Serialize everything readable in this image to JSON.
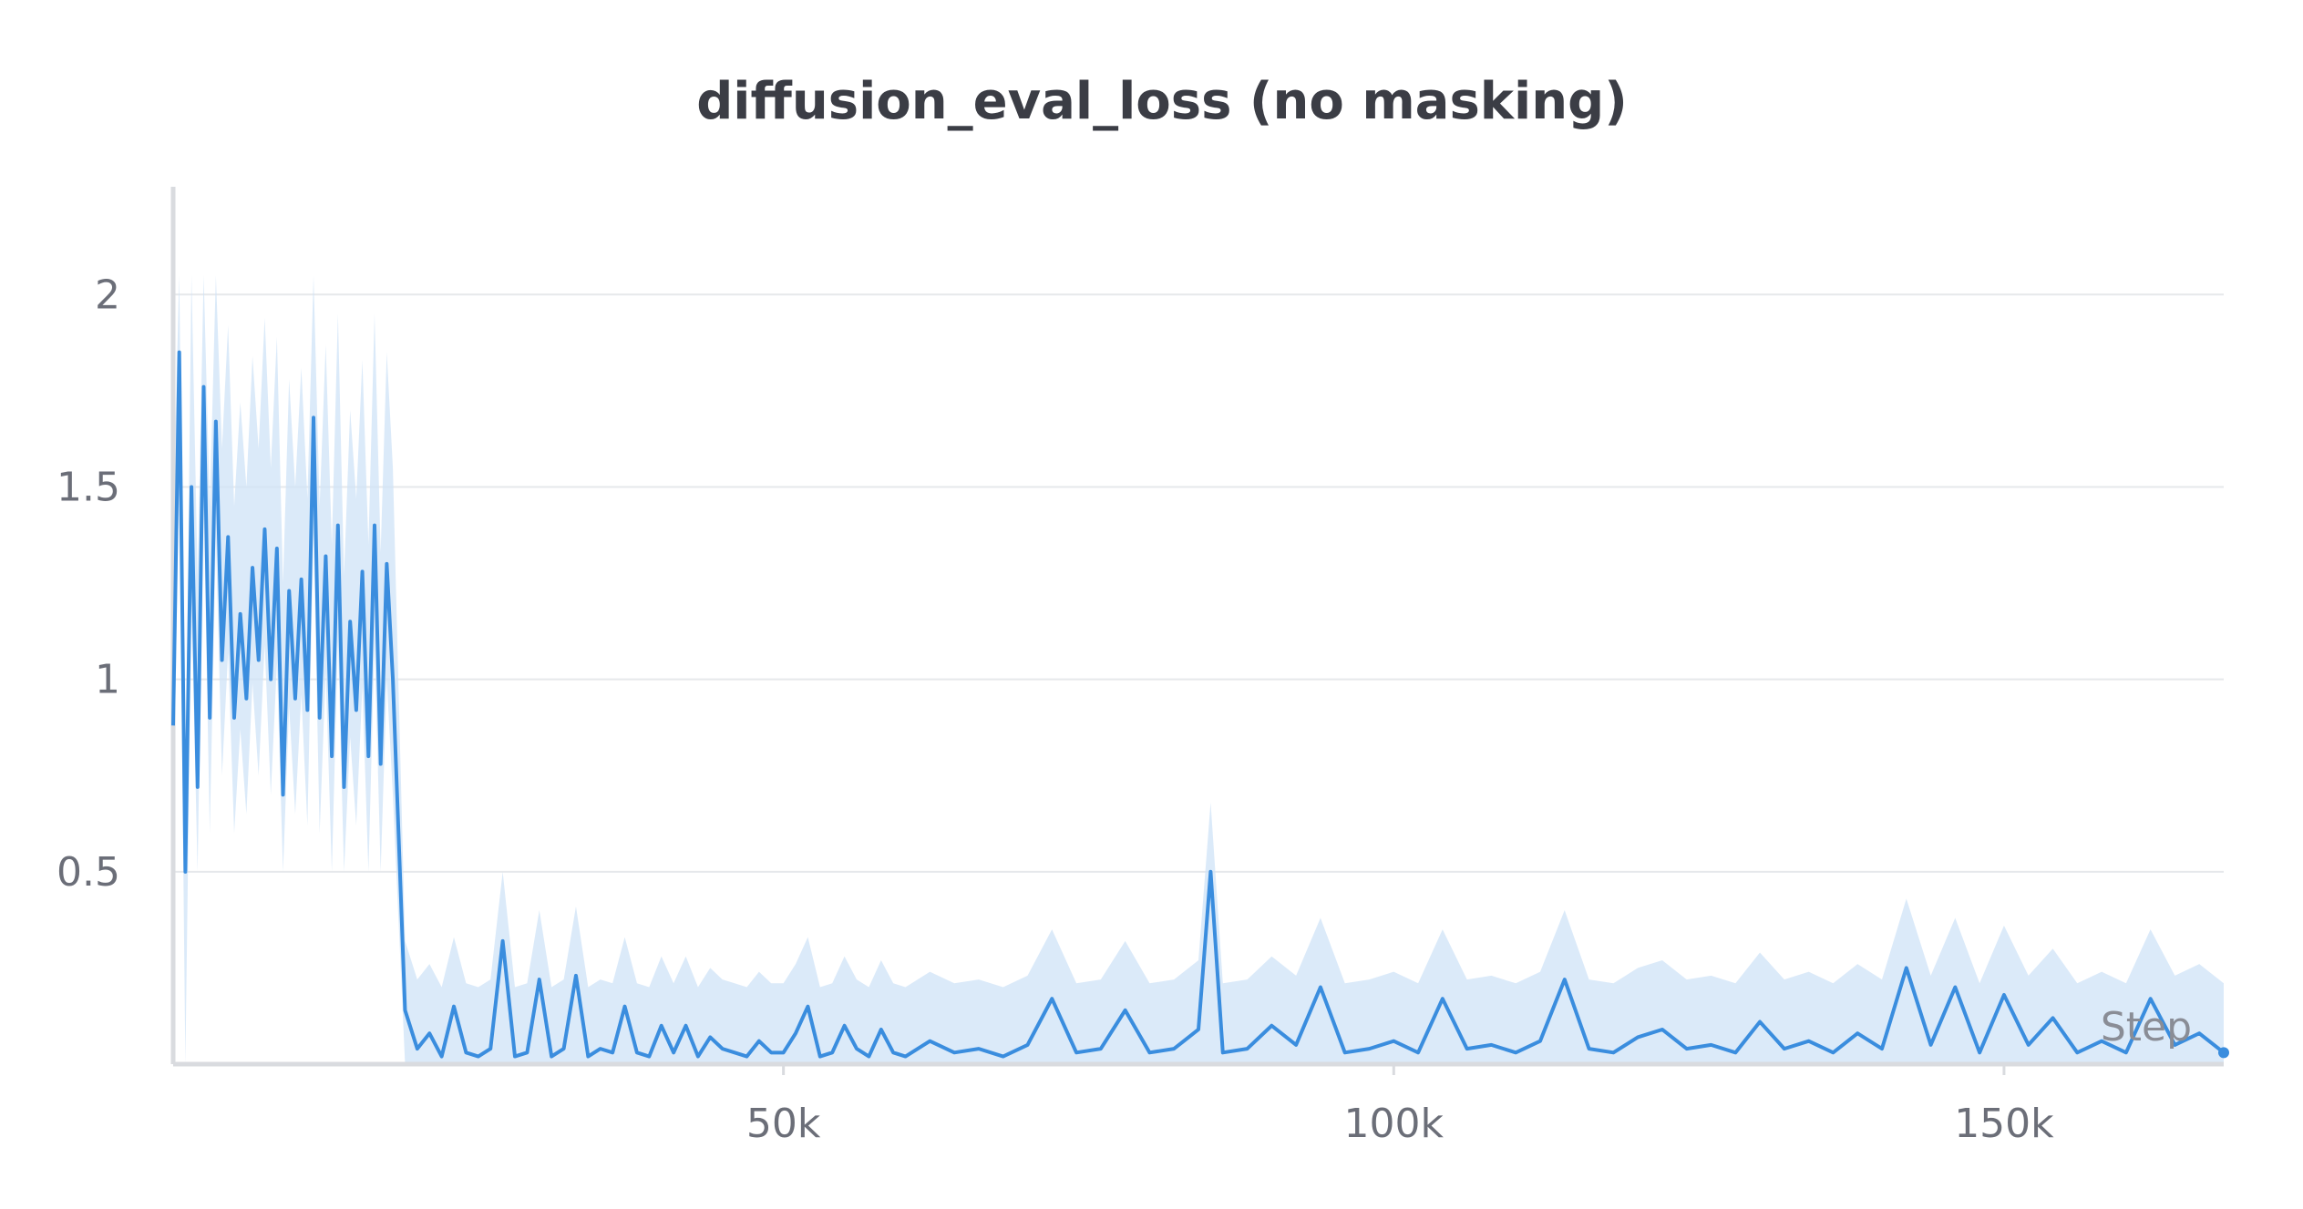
{
  "chart_data": {
    "type": "line",
    "title": "diffusion_eval_loss (no masking)",
    "xlabel": "Step",
    "ylabel": "",
    "xlim": [
      0,
      168000
    ],
    "ylim": [
      0,
      2.28
    ],
    "x_ticks": [
      {
        "value": 50000,
        "label": "50k"
      },
      {
        "value": 100000,
        "label": "100k"
      },
      {
        "value": 150000,
        "label": "150k"
      }
    ],
    "y_ticks": [
      {
        "value": 0.5,
        "label": "0.5"
      },
      {
        "value": 1,
        "label": "1"
      },
      {
        "value": 1.5,
        "label": "1.5"
      },
      {
        "value": 2,
        "label": "2"
      }
    ],
    "grid": "horizontal",
    "legend": "none",
    "colors": {
      "line": "#3a8dde",
      "band": "#cfe3f7",
      "grid": "#e6e8eb",
      "axis": "#d9dbdf"
    },
    "series": [
      {
        "x": [
          0,
          500,
          1000,
          1500,
          2000,
          2500,
          3000,
          3500,
          4000,
          4500,
          5000,
          5500,
          6000,
          6500,
          7000,
          7500,
          8000,
          8500,
          9000,
          9500,
          10000,
          10500,
          11000,
          11500,
          12000,
          12500,
          13000,
          13500,
          14000,
          14500,
          15000,
          15500,
          16000,
          16500,
          17000,
          17500,
          18000,
          19000,
          20000,
          21000,
          22000,
          23000,
          24000,
          25000,
          26000,
          27000,
          28000,
          29000,
          30000,
          31000,
          32000,
          33000,
          34000,
          35000,
          36000,
          37000,
          38000,
          39000,
          40000,
          41000,
          42000,
          43000,
          44000,
          45000,
          46000,
          47000,
          48000,
          49000,
          50000,
          51000,
          52000,
          53000,
          54000,
          55000,
          56000,
          57000,
          58000,
          59000,
          60000,
          62000,
          64000,
          66000,
          68000,
          70000,
          72000,
          74000,
          76000,
          78000,
          80000,
          82000,
          84000,
          85000,
          86000,
          88000,
          90000,
          92000,
          94000,
          96000,
          98000,
          100000,
          102000,
          104000,
          106000,
          108000,
          110000,
          112000,
          114000,
          116000,
          118000,
          120000,
          122000,
          124000,
          126000,
          128000,
          130000,
          132000,
          134000,
          136000,
          138000,
          140000,
          142000,
          144000,
          146000,
          148000,
          150000,
          152000,
          154000,
          156000,
          158000,
          160000,
          162000,
          164000,
          166000,
          168000
        ],
        "y": [
          0.88,
          1.85,
          0.5,
          1.5,
          0.72,
          1.76,
          0.9,
          1.67,
          1.05,
          1.37,
          0.9,
          1.17,
          0.95,
          1.29,
          1.05,
          1.39,
          1.0,
          1.34,
          0.7,
          1.23,
          0.95,
          1.26,
          0.92,
          1.68,
          0.9,
          1.32,
          0.8,
          1.4,
          0.72,
          1.15,
          0.92,
          1.28,
          0.8,
          1.4,
          0.78,
          1.3,
          1.0,
          0.14,
          0.04,
          0.08,
          0.02,
          0.15,
          0.03,
          0.02,
          0.04,
          0.32,
          0.02,
          0.03,
          0.22,
          0.02,
          0.04,
          0.23,
          0.02,
          0.04,
          0.03,
          0.15,
          0.03,
          0.02,
          0.1,
          0.03,
          0.1,
          0.02,
          0.07,
          0.04,
          0.03,
          0.02,
          0.06,
          0.03,
          0.03,
          0.08,
          0.15,
          0.02,
          0.03,
          0.1,
          0.04,
          0.02,
          0.09,
          0.03,
          0.02,
          0.06,
          0.03,
          0.04,
          0.02,
          0.05,
          0.17,
          0.03,
          0.04,
          0.14,
          0.03,
          0.04,
          0.09,
          0.5,
          0.03,
          0.04,
          0.1,
          0.05,
          0.2,
          0.03,
          0.04,
          0.06,
          0.03,
          0.17,
          0.04,
          0.05,
          0.03,
          0.06,
          0.22,
          0.04,
          0.03,
          0.07,
          0.09,
          0.04,
          0.05,
          0.03,
          0.11,
          0.04,
          0.06,
          0.03,
          0.08,
          0.04,
          0.25,
          0.05,
          0.2,
          0.03,
          0.18,
          0.05,
          0.12,
          0.03,
          0.06,
          0.03,
          0.17,
          0.05,
          0.08,
          0.03
        ]
      }
    ]
  }
}
